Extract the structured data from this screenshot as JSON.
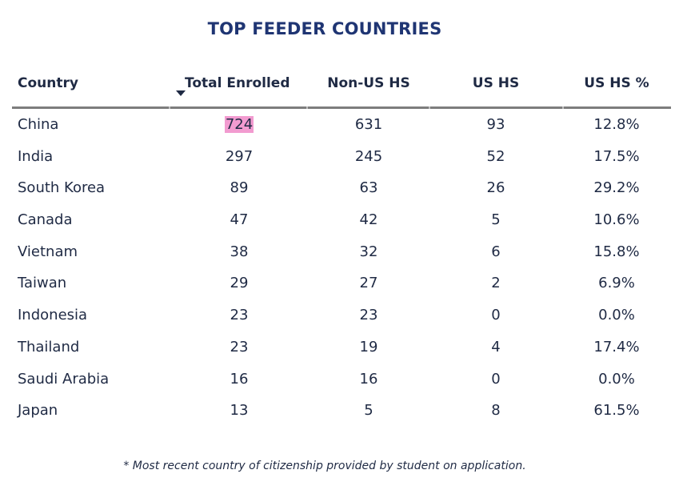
{
  "chart_data": {
    "type": "table",
    "title": "TOP FEEDER COUNTRIES",
    "columns": [
      "Country",
      "Total Enrolled",
      "Non-US HS",
      "US HS",
      "US HS %"
    ],
    "sorted_column": "Total Enrolled",
    "sort_direction": "descending",
    "rows": [
      {
        "country": "China",
        "total": "724",
        "non_us": "631",
        "us": "93",
        "pct": "12.8%"
      },
      {
        "country": "India",
        "total": "297",
        "non_us": "245",
        "us": "52",
        "pct": "17.5%"
      },
      {
        "country": "South Korea",
        "total": "89",
        "non_us": "63",
        "us": "26",
        "pct": "29.2%"
      },
      {
        "country": "Canada",
        "total": "47",
        "non_us": "42",
        "us": "5",
        "pct": "10.6%"
      },
      {
        "country": "Vietnam",
        "total": "38",
        "non_us": "32",
        "us": "6",
        "pct": "15.8%"
      },
      {
        "country": "Taiwan",
        "total": "29",
        "non_us": "27",
        "us": "2",
        "pct": "6.9%"
      },
      {
        "country": "Indonesia",
        "total": "23",
        "non_us": "23",
        "us": "0",
        "pct": "0.0%"
      },
      {
        "country": "Thailand",
        "total": "23",
        "non_us": "19",
        "us": "4",
        "pct": "17.4%"
      },
      {
        "country": "Saudi Arabia",
        "total": "16",
        "non_us": "16",
        "us": "0",
        "pct": "0.0%"
      },
      {
        "country": "Japan",
        "total": "13",
        "non_us": "5",
        "us": "8",
        "pct": "61.5%"
      }
    ],
    "highlighted_cell": {
      "row": 0,
      "column": "Total Enrolled",
      "value": "724"
    },
    "footnote": "* Most recent country of citizenship provided by student on application."
  },
  "colors": {
    "title": "#1f3573",
    "text": "#1f2a44",
    "highlight": "#f29bd0",
    "header_rule": "#7d7d7d"
  }
}
